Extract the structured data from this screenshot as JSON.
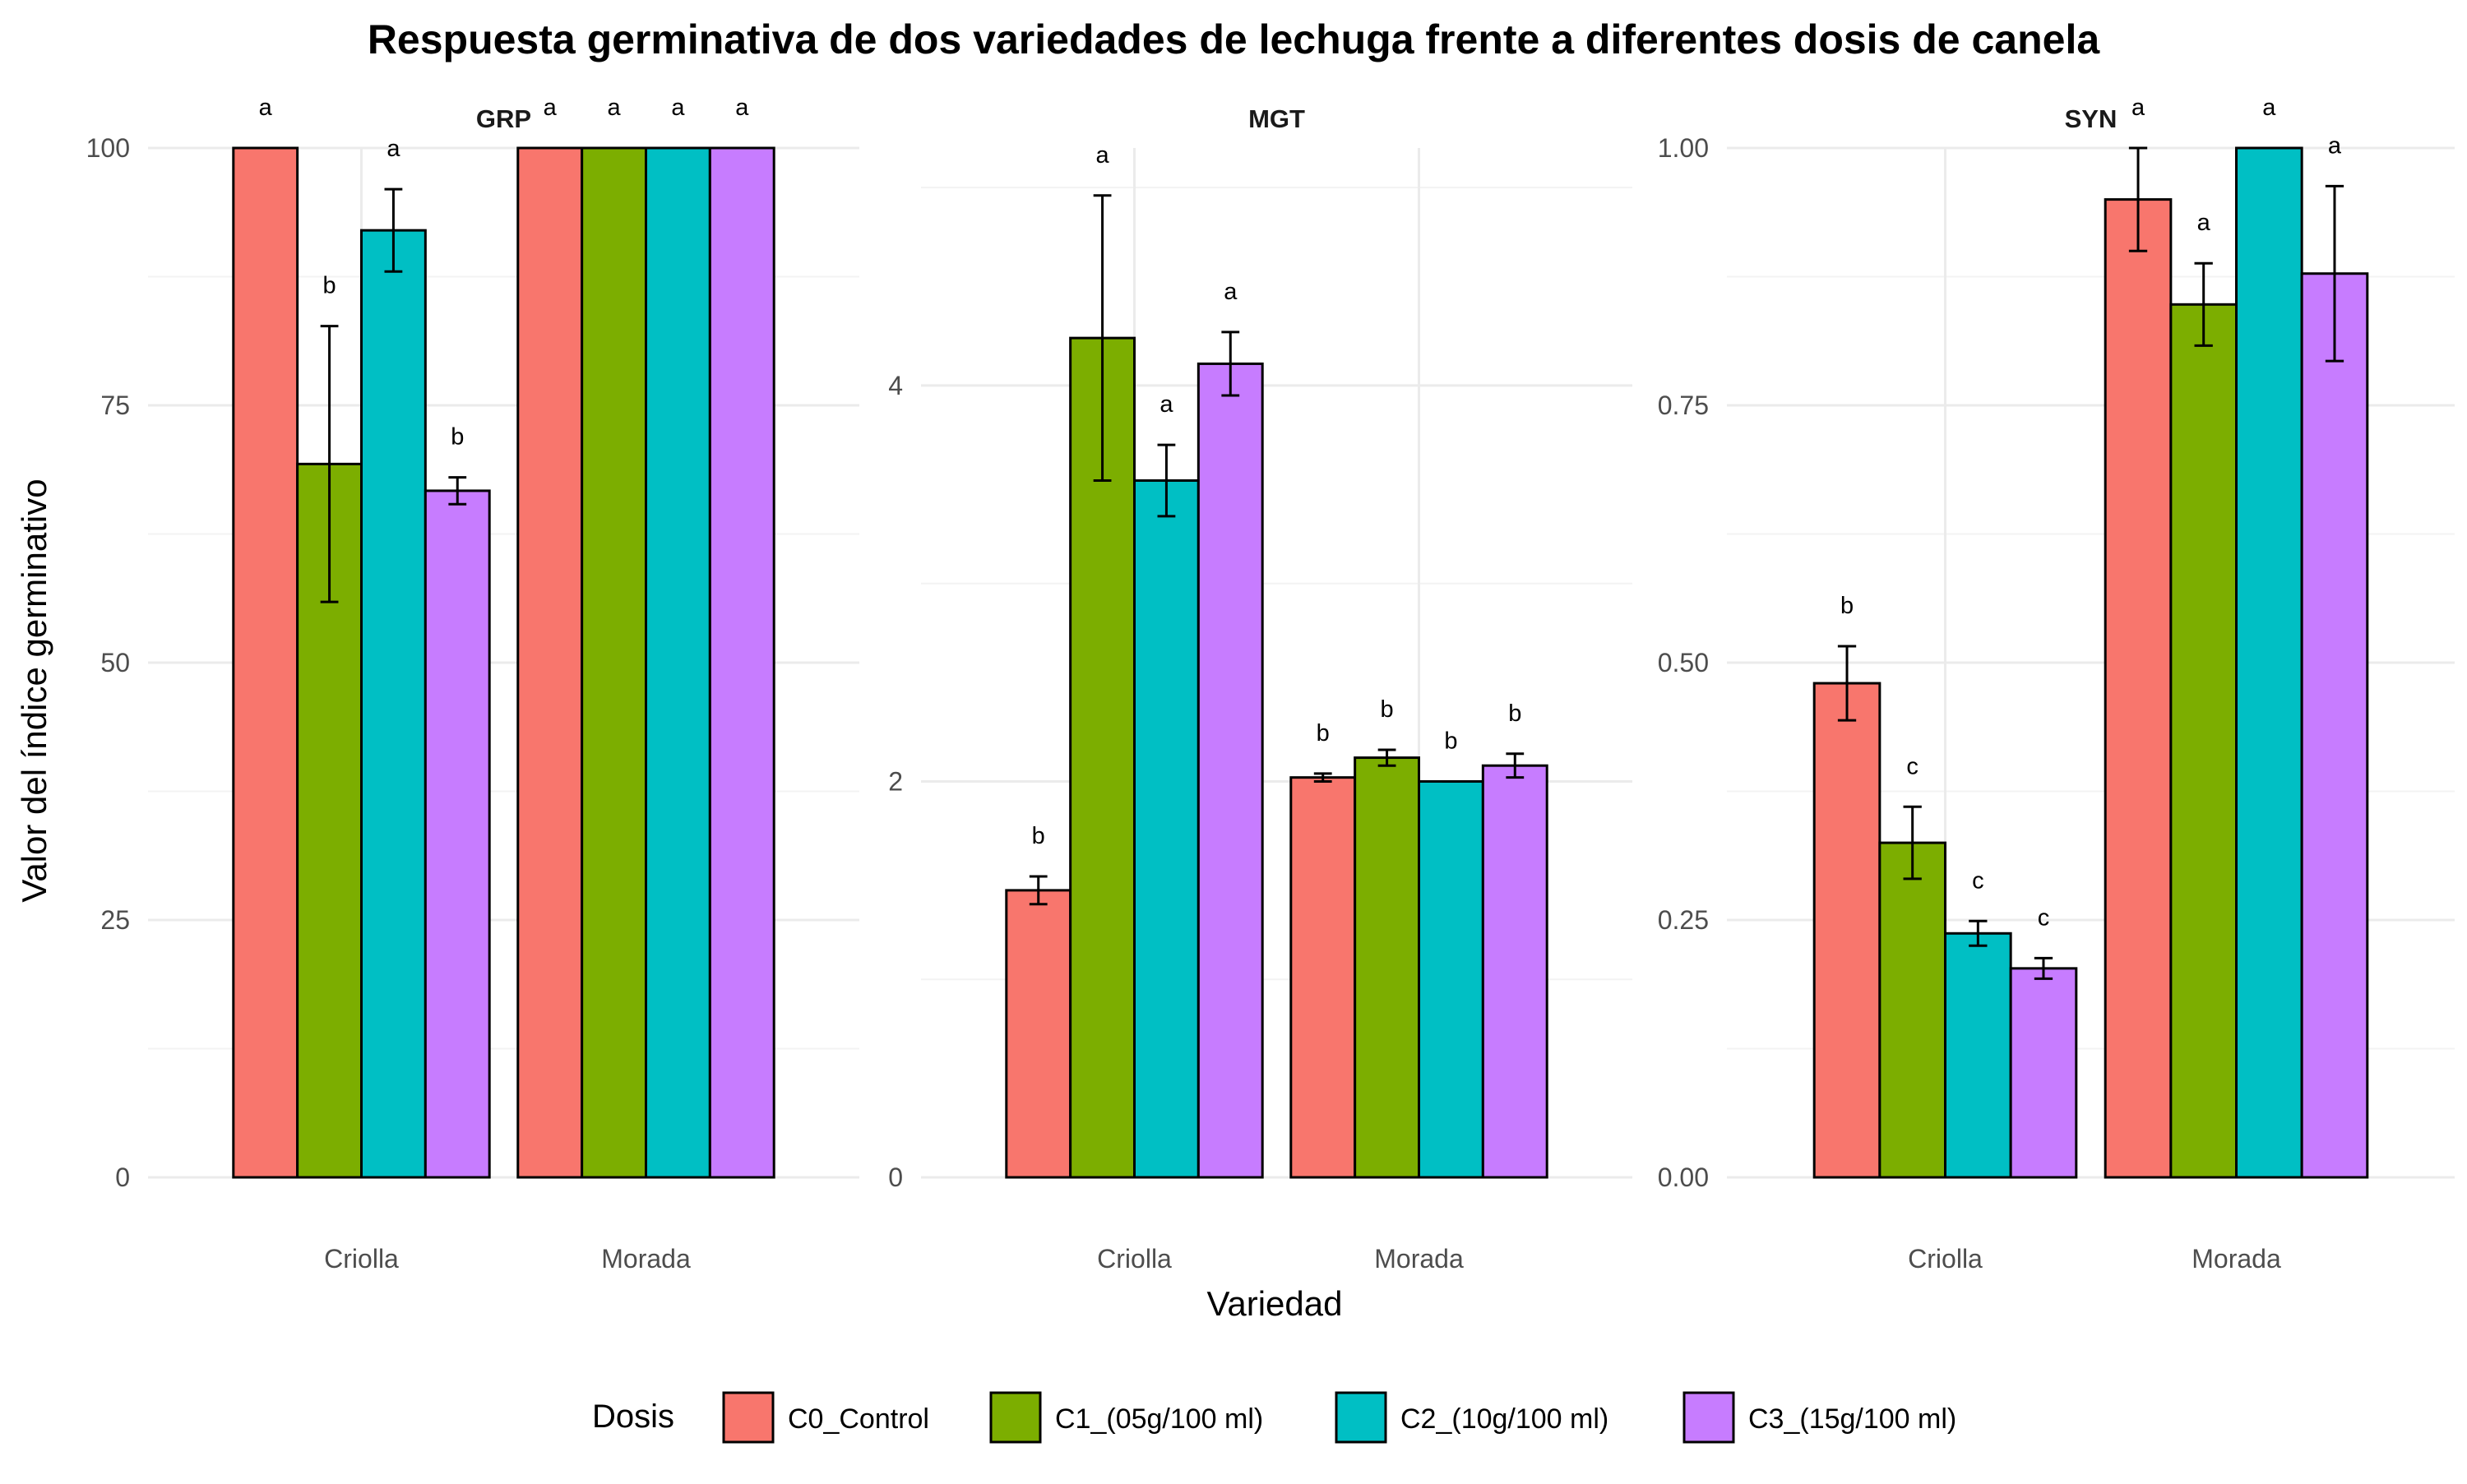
{
  "chart_data": {
    "type": "bar",
    "title": "Respuesta germinativa de dos variedades de lechuga frente a diferentes dosis de canela",
    "xlabel": "Variedad",
    "ylabel": "Valor del índice germinativo",
    "legend": {
      "title": "Dosis",
      "position": "bottom",
      "entries": [
        "C0_Control",
        "C1_(05g/100 ml)",
        "C2_(10g/100 ml)",
        "C3_(15g/100 ml)"
      ]
    },
    "series_colors": [
      "#F8766D",
      "#7CAE00",
      "#00BFC4",
      "#C77CFF"
    ],
    "categories": [
      "Criolla",
      "Morada"
    ],
    "grid": true,
    "panels": [
      {
        "name": "GRP",
        "ylim": [
          0,
          100
        ],
        "yticks": [
          0,
          25,
          50,
          75,
          100
        ],
        "ytick_labels": [
          "0",
          "25",
          "50",
          "75",
          "100"
        ],
        "minor_ticks": [
          12.5,
          37.5,
          62.5,
          87.5
        ],
        "series": [
          {
            "name": "C0_Control",
            "values": [
              100,
              100
            ],
            "errors": [
              0,
              0
            ],
            "letters": [
              "a",
              "a"
            ]
          },
          {
            "name": "C1_(05g/100 ml)",
            "values": [
              69.3,
              100
            ],
            "errors": [
              13.4,
              0
            ],
            "letters": [
              "b",
              "a"
            ]
          },
          {
            "name": "C2_(10g/100 ml)",
            "values": [
              92,
              100
            ],
            "errors": [
              4,
              0
            ],
            "letters": [
              "a",
              "a"
            ]
          },
          {
            "name": "C3_(15g/100 ml)",
            "values": [
              66.7,
              100
            ],
            "errors": [
              1.3,
              0
            ],
            "letters": [
              "b",
              "a"
            ]
          }
        ]
      },
      {
        "name": "MGT",
        "ylim": [
          0,
          5.2
        ],
        "yticks": [
          0,
          2,
          4
        ],
        "ytick_labels": [
          "0",
          "2",
          "4"
        ],
        "minor_ticks": [
          1,
          3,
          5
        ],
        "series": [
          {
            "name": "C0_Control",
            "values": [
              1.45,
              2.02
            ],
            "errors": [
              0.07,
              0.02
            ],
            "letters": [
              "b",
              "b"
            ]
          },
          {
            "name": "C1_(05g/100 ml)",
            "values": [
              4.24,
              2.12
            ],
            "errors": [
              0.72,
              0.04
            ],
            "letters": [
              "a",
              "b"
            ]
          },
          {
            "name": "C2_(10g/100 ml)",
            "values": [
              3.52,
              2.0
            ],
            "errors": [
              0.18,
              0
            ],
            "letters": [
              "a",
              "b"
            ]
          },
          {
            "name": "C3_(15g/100 ml)",
            "values": [
              4.11,
              2.08
            ],
            "errors": [
              0.16,
              0.06
            ],
            "letters": [
              "a",
              "b"
            ]
          }
        ]
      },
      {
        "name": "SYN",
        "ylim": [
          0,
          1
        ],
        "yticks": [
          0,
          0.25,
          0.5,
          0.75,
          1
        ],
        "ytick_labels": [
          "0.00",
          "0.25",
          "0.50",
          "0.75",
          "1.00"
        ],
        "minor_ticks": [
          0.125,
          0.375,
          0.625,
          0.875
        ],
        "series": [
          {
            "name": "C0_Control",
            "values": [
              0.48,
              0.95
            ],
            "errors": [
              0.036,
              0.05
            ],
            "letters": [
              "b",
              "a"
            ]
          },
          {
            "name": "C1_(05g/100 ml)",
            "values": [
              0.325,
              0.848
            ],
            "errors": [
              0.035,
              0.04
            ],
            "letters": [
              "c",
              "a"
            ]
          },
          {
            "name": "C2_(10g/100 ml)",
            "values": [
              0.237,
              1.0
            ],
            "errors": [
              0.012,
              0
            ],
            "letters": [
              "c",
              "a"
            ]
          },
          {
            "name": "C3_(15g/100 ml)",
            "values": [
              0.203,
              0.878
            ],
            "errors": [
              0.01,
              0.085
            ],
            "letters": [
              "c",
              "a"
            ]
          }
        ]
      }
    ]
  }
}
